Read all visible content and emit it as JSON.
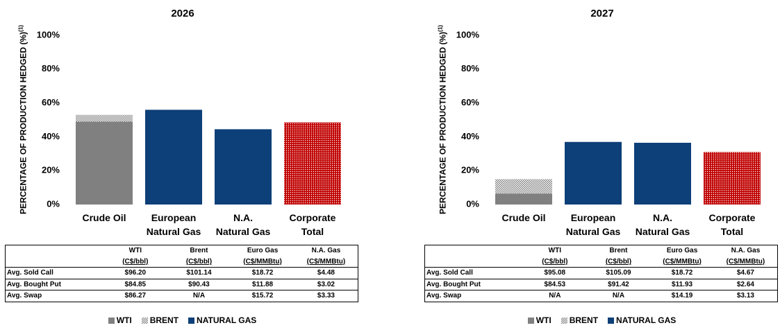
{
  "chart_data": [
    {
      "type": "bar",
      "stacked": true,
      "title": "2026",
      "ylabel": "PERCENTAGE OF PRODUCTION HEDGED (%)",
      "ylabel_note": "(1)",
      "categories": [
        "Crude Oil",
        "European\nNatural Gas",
        "N.A.\nNatural Gas",
        "Corporate\nTotal"
      ],
      "series": [
        {
          "name": "WTI",
          "color": "#808080",
          "values": [
            49,
            null,
            null,
            null
          ]
        },
        {
          "name": "BRENT",
          "color": "#808080",
          "pattern": "checker",
          "values": [
            4,
            null,
            null,
            null
          ]
        },
        {
          "name": "NATURAL GAS",
          "color": "#0d3f78",
          "values": [
            null,
            56,
            44.5,
            null
          ]
        },
        {
          "color": "#c00000",
          "pattern": "dots",
          "values": [
            null,
            null,
            null,
            48.5
          ]
        }
      ],
      "ylim": [
        0,
        100
      ],
      "yticks": [
        {
          "value": 0,
          "label": "0%"
        },
        {
          "value": 20,
          "label": "20%"
        },
        {
          "value": 40,
          "label": "40%"
        },
        {
          "value": 60,
          "label": "60%"
        },
        {
          "value": 80,
          "label": "80%"
        },
        {
          "value": 100,
          "label": "100%"
        }
      ],
      "grid": false,
      "table": {
        "columns": [
          "WTI",
          "Brent",
          "Euro Gas",
          "N.A. Gas"
        ],
        "units": [
          "(C$/bbl)",
          "(C$/bbl)",
          "(C$/MMBtu)",
          "(C$/MMBtu)"
        ],
        "rows": [
          {
            "label": "Avg. Sold Call",
            "values": [
              "$96.20",
              "$101.14",
              "$18.72",
              "$4.48"
            ]
          },
          {
            "label": "Avg. Bought Put",
            "values": [
              "$84.85",
              "$90.43",
              "$11.88",
              "$3.02"
            ]
          },
          {
            "label": "Avg. Swap",
            "values": [
              "$86.27",
              "N/A",
              "$15.72",
              "$3.33"
            ]
          }
        ]
      }
    },
    {
      "type": "bar",
      "stacked": true,
      "title": "2027",
      "ylabel": "PERCENTAGE OF PRODUCTION HEDGED (%)",
      "ylabel_note": "(1)",
      "categories": [
        "Crude Oil",
        "European\nNatural Gas",
        "N.A.\nNatural Gas",
        "Corporate\nTotal"
      ],
      "series": [
        {
          "name": "WTI",
          "color": "#808080",
          "values": [
            6.5,
            null,
            null,
            null
          ]
        },
        {
          "name": "BRENT",
          "color": "#808080",
          "pattern": "checker",
          "values": [
            8.5,
            null,
            null,
            null
          ]
        },
        {
          "name": "NATURAL GAS",
          "color": "#0d3f78",
          "values": [
            null,
            37,
            36.5,
            null
          ]
        },
        {
          "color": "#c00000",
          "pattern": "dots",
          "values": [
            null,
            null,
            null,
            31
          ]
        }
      ],
      "ylim": [
        0,
        100
      ],
      "yticks": [
        {
          "value": 0,
          "label": "0%"
        },
        {
          "value": 20,
          "label": "20%"
        },
        {
          "value": 40,
          "label": "40%"
        },
        {
          "value": 60,
          "label": "60%"
        },
        {
          "value": 80,
          "label": "80%"
        },
        {
          "value": 100,
          "label": "100%"
        }
      ],
      "grid": false,
      "table": {
        "columns": [
          "WTI",
          "Brent",
          "Euro Gas",
          "N.A. Gas"
        ],
        "units": [
          "(C$/bbl)",
          "(C$/bbl)",
          "(C$/MMBtu)",
          "(C$/MMBtu)"
        ],
        "rows": [
          {
            "label": "Avg. Sold Call",
            "values": [
              "$95.08",
              "$105.09",
              "$18.72",
              "$4.67"
            ]
          },
          {
            "label": "Avg. Bought Put",
            "values": [
              "$84.53",
              "$91.42",
              "$11.93",
              "$2.64"
            ]
          },
          {
            "label": "Avg. Swap",
            "values": [
              "N/A",
              "N/A",
              "$14.19",
              "$3.13"
            ]
          }
        ]
      }
    }
  ]
}
